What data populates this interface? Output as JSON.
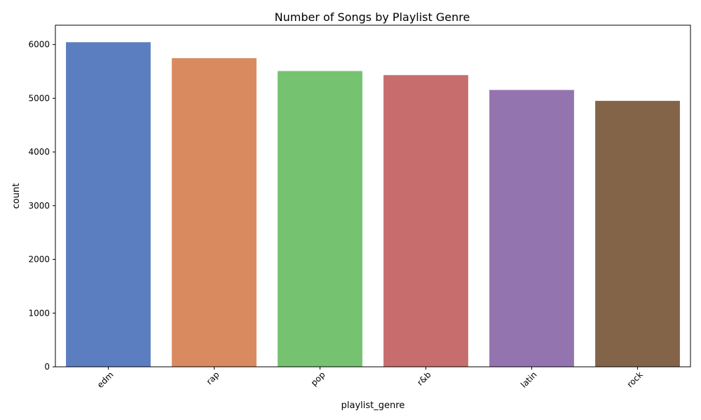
{
  "chart_data": {
    "type": "bar",
    "title": "Number of Songs by Playlist Genre",
    "xlabel": "playlist_genre",
    "ylabel": "count",
    "categories": [
      "edm",
      "rap",
      "pop",
      "r&b",
      "latin",
      "rock"
    ],
    "values": [
      6043,
      5746,
      5507,
      5431,
      5155,
      4951
    ],
    "colors": [
      "#5b7ec1",
      "#d98b5f",
      "#75c270",
      "#c76d6d",
      "#9474ae",
      "#836449"
    ],
    "ylim": [
      0,
      6360
    ],
    "yticks": [
      0,
      1000,
      2000,
      3000,
      4000,
      5000,
      6000
    ],
    "grid": false,
    "legend": "none"
  }
}
